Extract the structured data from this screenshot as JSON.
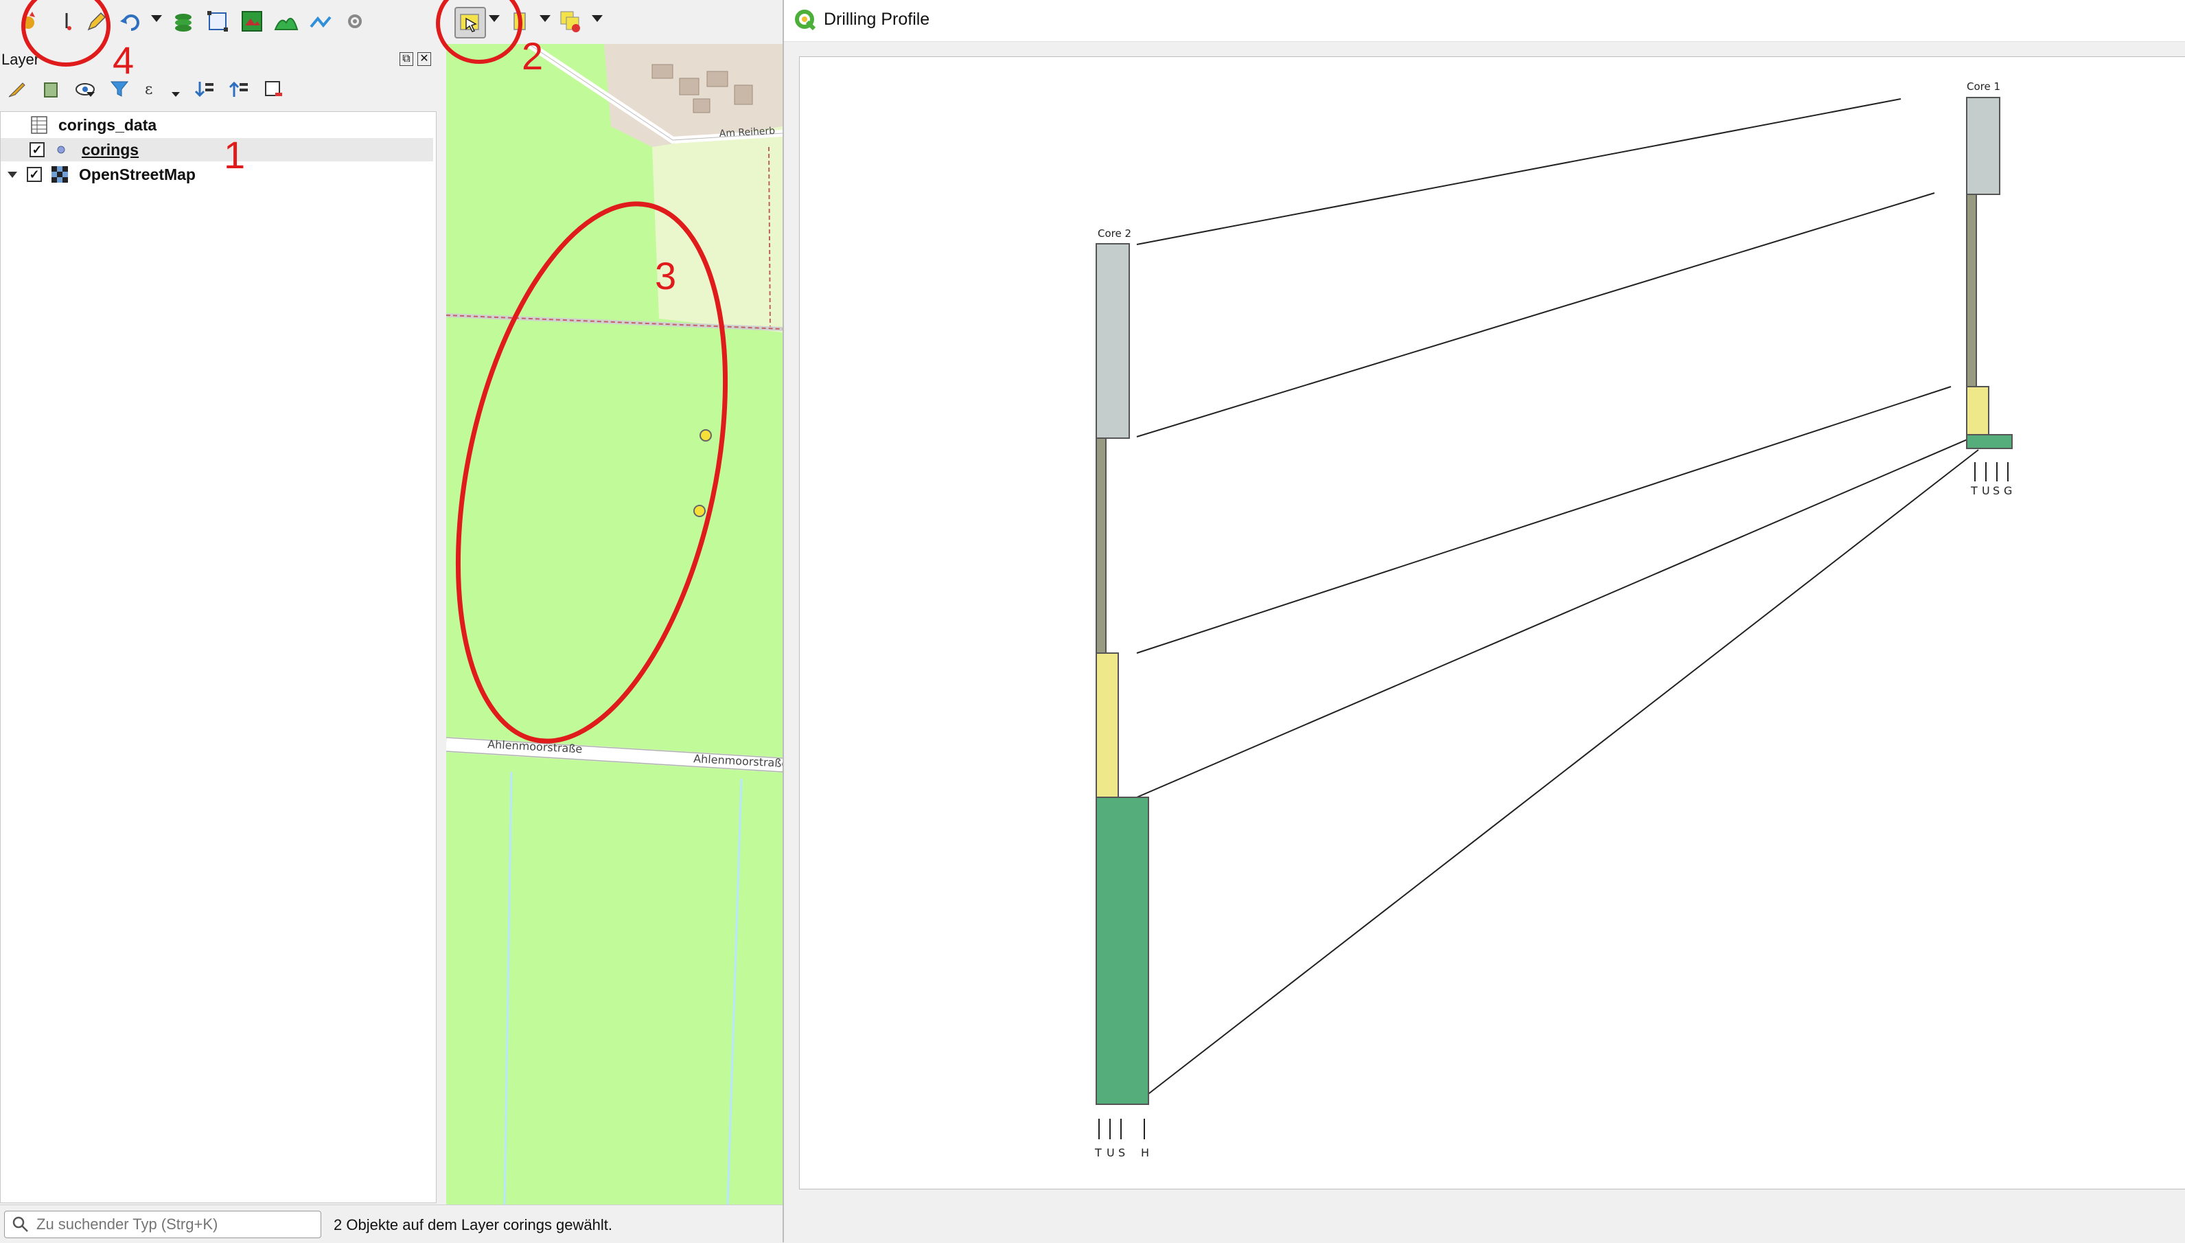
{
  "main_window": {
    "toolbar": {
      "icons": [
        "new-layer-icon",
        "digitize-icon",
        "edit-pencil-icon",
        "undo-icon",
        "refresh-icon",
        "vertex-tool-icon",
        "raster-icon",
        "area-icon",
        "network-icon",
        "settings-gear-icon",
        "select-features-icon",
        "select-dropdown-icon",
        "table-icon",
        "deselect-icon"
      ]
    },
    "layers_panel": {
      "title": "Layer",
      "tree": [
        {
          "name": "corings_data",
          "type": "table",
          "checked": null
        },
        {
          "name": "corings",
          "type": "point",
          "checked": true,
          "selected": true
        },
        {
          "name": "OpenStreetMap",
          "type": "tile",
          "checked": true,
          "expandable": true
        }
      ]
    },
    "map": {
      "background_color": "#c1fa98",
      "street_labels": [
        "Am Reiherb",
        "Ahlenmoorstraße",
        "Ahlenmoorstraße"
      ],
      "points": 2,
      "point_color": "#f5e03a"
    },
    "statusbar": {
      "search_placeholder": "Zu suchender Typ (Strg+K)",
      "message": "2 Objekte auf dem Layer corings gewählt."
    }
  },
  "annotations": {
    "color": "#e01b1b",
    "labels": [
      "1",
      "2",
      "3",
      "4"
    ]
  },
  "drilling_profile": {
    "window_title": "Drilling Profile",
    "cores": [
      {
        "name": "Core 2",
        "legend": [
          "T",
          "U",
          "S",
          "H"
        ],
        "layers": [
          {
            "color": "#c4cccc",
            "label": "grey"
          },
          {
            "color": "#999a82",
            "label": "olive"
          },
          {
            "color": "#efe88a",
            "label": "yellow"
          },
          {
            "color": "#55ad7c",
            "label": "green"
          }
        ]
      },
      {
        "name": "Core 1",
        "legend": [
          "T",
          "U",
          "S",
          "G"
        ],
        "layers": [
          {
            "color": "#c4cccc",
            "label": "grey"
          },
          {
            "color": "#999a82",
            "label": "olive"
          },
          {
            "color": "#efe88a",
            "label": "yellow"
          },
          {
            "color": "#55ad7c",
            "label": "green"
          }
        ]
      }
    ]
  }
}
